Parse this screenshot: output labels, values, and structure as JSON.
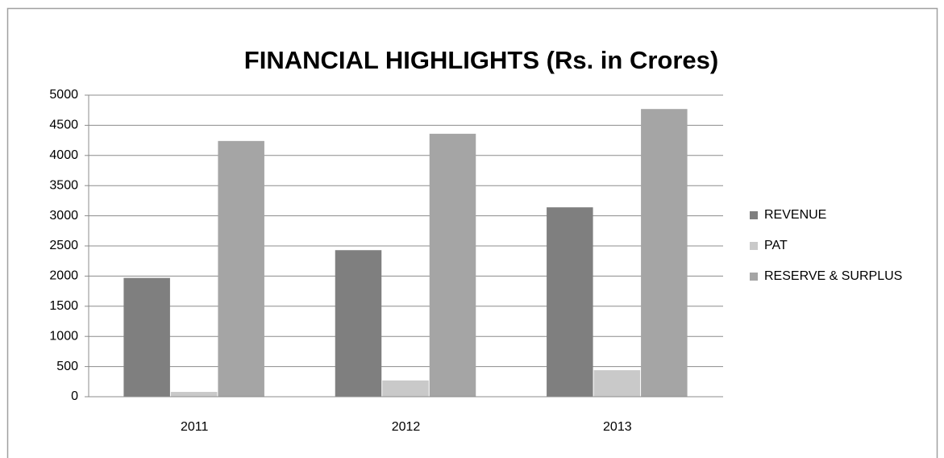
{
  "chart_data": {
    "type": "bar",
    "title": "FINANCIAL HIGHLIGHTS (Rs. in Crores)",
    "categories": [
      "2011",
      "2012",
      "2013"
    ],
    "series": [
      {
        "name": "REVENUE",
        "color": "#7f7f7f",
        "values": [
          1970,
          2430,
          3140
        ]
      },
      {
        "name": "PAT",
        "color": "#c9c9c9",
        "values": [
          80,
          270,
          440
        ]
      },
      {
        "name": "RESERVE & SURPLUS",
        "color": "#a5a5a5",
        "values": [
          4240,
          4360,
          4770
        ]
      }
    ],
    "ylim": [
      0,
      5000
    ],
    "yticks": [
      0,
      500,
      1000,
      1500,
      2000,
      2500,
      3000,
      3500,
      4000,
      4500,
      5000
    ],
    "grid": true,
    "legend": "right"
  }
}
